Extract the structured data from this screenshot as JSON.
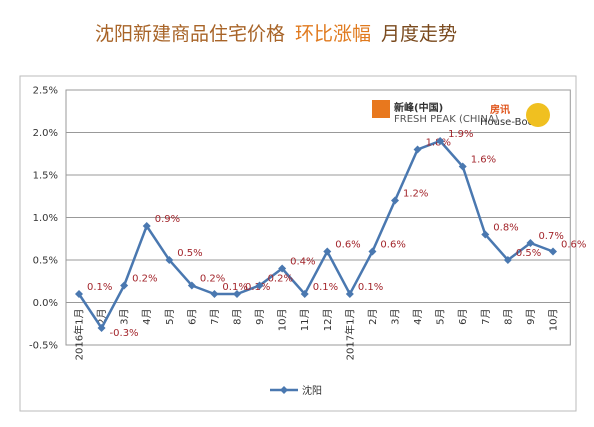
{
  "chart_data": {
    "type": "line",
    "title": [
      "沈阳新建商品住宅价格",
      "环比涨幅",
      "月度走势"
    ],
    "annotations": [
      "新峰(中国)",
      "FRESH PEAK (CHINA)",
      "房讯",
      "House-Book"
    ],
    "categories": [
      "2016年1月",
      "2月",
      "3月",
      "4月",
      "5月",
      "6月",
      "7月",
      "8月",
      "9月",
      "10月",
      "11月",
      "12月",
      "2017年1月",
      "2月",
      "3月",
      "4月",
      "5月",
      "6月",
      "7月",
      "8月",
      "9月",
      "10月"
    ],
    "series": [
      {
        "name": "沈阳",
        "color": "#4a78b0",
        "values": [
          0.1,
          -0.3,
          0.2,
          0.9,
          0.5,
          0.2,
          0.1,
          0.1,
          0.2,
          0.4,
          0.1,
          0.6,
          0.1,
          0.6,
          1.2,
          1.8,
          1.9,
          1.6,
          0.8,
          0.5,
          0.7,
          0.6
        ],
        "value_labels": [
          "0.1%",
          "-0.3%",
          "0.2%",
          "0.9%",
          "0.5%",
          "0.2%",
          "0.1%",
          "0.1%",
          "0.2%",
          "0.4%",
          "0.1%",
          "0.6%",
          "0.1%",
          "0.6%",
          "1.2%",
          "1.8%",
          "1.9%",
          "1.6%",
          "0.8%",
          "0.5%",
          "0.7%",
          "0.6%"
        ]
      }
    ],
    "ylim": [
      -0.5,
      2.5
    ],
    "yticks": [
      {
        "value": -0.5,
        "label": "-0.5%"
      },
      {
        "value": 0,
        "label": "0.0%"
      },
      {
        "value": 0.5,
        "label": "0.5%"
      },
      {
        "value": 1,
        "label": "1.0%"
      },
      {
        "value": 1.5,
        "label": "1.5%"
      },
      {
        "value": 2,
        "label": "2.0%"
      },
      {
        "value": 2.5,
        "label": "2.5%"
      }
    ],
    "grid": true,
    "legend": "bottom",
    "label_color": "#a3262c"
  }
}
